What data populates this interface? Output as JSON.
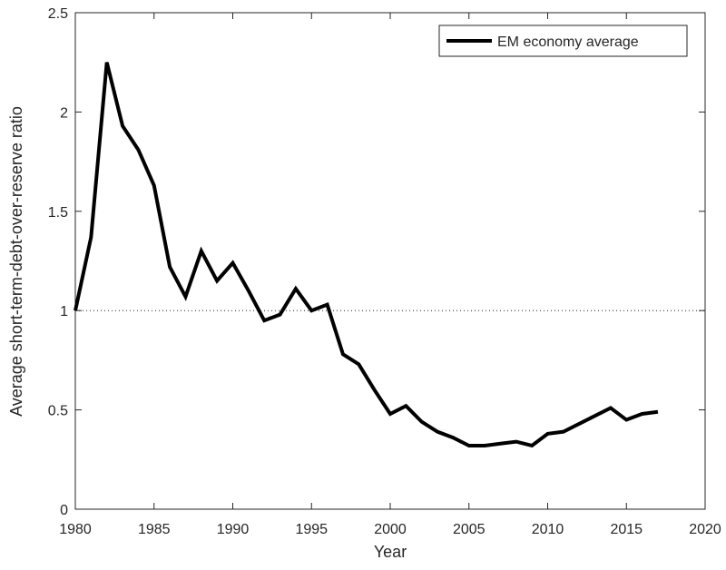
{
  "chart_data": {
    "type": "line",
    "x_label": "Year",
    "y_label": "Average short-term-debt-over-reserve ratio",
    "x": [
      1980,
      1981,
      1982,
      1983,
      1984,
      1985,
      1986,
      1987,
      1988,
      1989,
      1990,
      1991,
      1992,
      1993,
      1994,
      1995,
      1996,
      1997,
      1998,
      1999,
      2000,
      2001,
      2002,
      2003,
      2004,
      2005,
      2006,
      2007,
      2008,
      2009,
      2010,
      2011,
      2012,
      2013,
      2014,
      2015,
      2016,
      2017
    ],
    "series": [
      {
        "name": "EM economy average",
        "color": "#000000",
        "values": [
          1.0,
          1.37,
          2.25,
          1.93,
          1.81,
          1.63,
          1.22,
          1.07,
          1.3,
          1.15,
          1.24,
          1.1,
          0.95,
          0.98,
          1.11,
          1.0,
          1.03,
          0.78,
          0.73,
          0.6,
          0.48,
          0.52,
          0.44,
          0.39,
          0.36,
          0.32,
          0.32,
          0.33,
          0.34,
          0.32,
          0.38,
          0.39,
          0.43,
          0.47,
          0.51,
          0.45,
          0.48,
          0.49
        ]
      }
    ],
    "reference_line": 1,
    "xlim": [
      1980,
      2020
    ],
    "xticks": [
      1980,
      1985,
      1990,
      1995,
      2000,
      2005,
      2010,
      2015,
      2020
    ],
    "ylim": [
      0,
      2.5
    ],
    "yticks": [
      0,
      0.5,
      1,
      1.5,
      2,
      2.5
    ],
    "legend": "upper right",
    "grid": false
  }
}
